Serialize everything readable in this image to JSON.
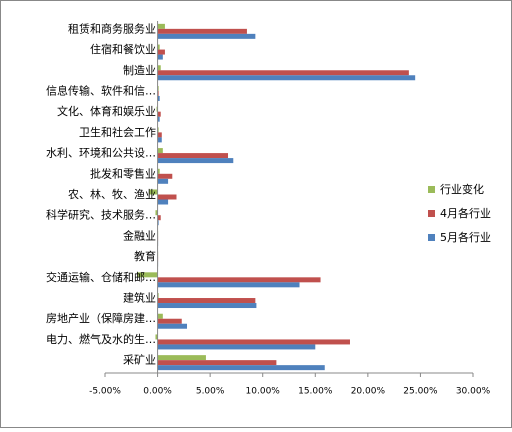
{
  "chart_data": {
    "type": "bar",
    "orientation": "horizontal",
    "categories": [
      "租赁和商务服务业",
      "住宿和餐饮业",
      "制造业",
      "信息传输、软件和信…",
      "文化、体育和娱乐业",
      "卫生和社会工作",
      "水利、环境和公共设…",
      "批发和零售业",
      "农、林、牧、渔业",
      "科学研究、技术服务…",
      "金融业",
      "教育",
      "交通运输、仓储和邮…",
      "建筑业",
      "房地产业（保障房建…",
      "电力、燃气及水的生…",
      "采矿业"
    ],
    "series": [
      {
        "name": "行业变化",
        "color": "#9bbb59",
        "values": [
          0.7,
          0.2,
          0.3,
          0.1,
          -0.1,
          0.1,
          0.5,
          0.2,
          -0.8,
          -0.2,
          0.05,
          0.05,
          -1.9,
          0.1,
          0.5,
          -0.2,
          4.6
        ]
      },
      {
        "name": "4月各行业",
        "color": "#c0504d",
        "values": [
          8.5,
          0.7,
          23.9,
          0.1,
          0.3,
          0.4,
          6.7,
          1.4,
          1.8,
          0.3,
          0.05,
          0.05,
          15.5,
          9.3,
          2.3,
          18.3,
          11.3
        ]
      },
      {
        "name": "5月各行业",
        "color": "#4f81bd",
        "values": [
          9.3,
          0.5,
          24.5,
          0.2,
          0.2,
          0.4,
          7.2,
          1.0,
          1.0,
          0.1,
          0.05,
          0.05,
          13.5,
          9.4,
          2.8,
          15.0,
          15.9
        ]
      }
    ],
    "xlim": [
      -5,
      30
    ],
    "xticks": [
      {
        "value": -5,
        "label": "-5.00%"
      },
      {
        "value": 0,
        "label": "0.00%"
      },
      {
        "value": 5,
        "label": "5.00%"
      },
      {
        "value": 10,
        "label": "10.00%"
      },
      {
        "value": 15,
        "label": "15.00%"
      },
      {
        "value": 20,
        "label": "20.00%"
      },
      {
        "value": 25,
        "label": "25.00%"
      },
      {
        "value": 30,
        "label": "30.00%"
      }
    ],
    "legend": "right"
  }
}
